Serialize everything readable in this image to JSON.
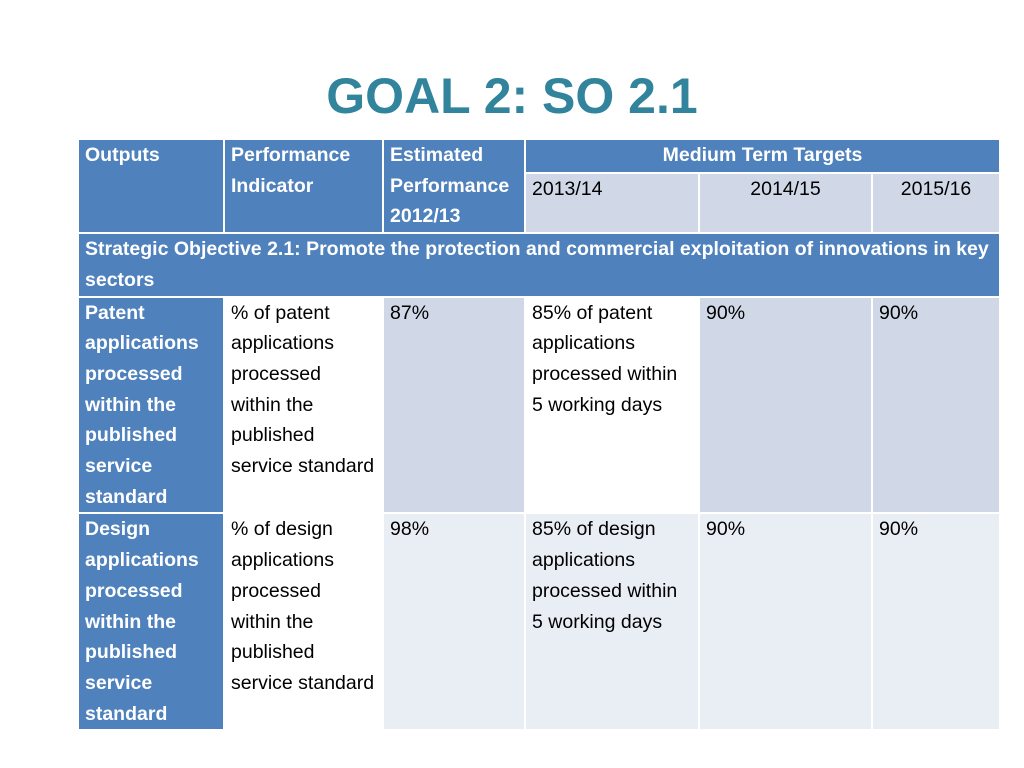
{
  "slide": {
    "title": "GOAL 2: SO 2.1"
  },
  "table": {
    "headers": {
      "outputs": "Outputs",
      "indicator": "Performance Indicator",
      "estimated": "Estimated Performance 2012/13",
      "medium_term": "Medium Term Targets",
      "years": [
        "2013/14",
        "2014/15",
        "2015/16"
      ]
    },
    "objective": "Strategic Objective 2.1: Promote the protection and commercial exploitation of innovations in key sectors",
    "rows": [
      {
        "output": "Patent applications processed within the published service standard",
        "indicator": "% of patent applications processed within the published service standard",
        "estimated": "87%",
        "target_2013_14": "85% of patent applications processed within 5 working days",
        "target_2014_15": "90%",
        "target_2015_16": "90%"
      },
      {
        "output": "Design applications processed within the published service standard",
        "indicator": "% of design applications processed within the published service standard",
        "estimated": "98%",
        "target_2013_14": "85% of design applications processed within 5 working days",
        "target_2014_15": "90%",
        "target_2015_16": "90%"
      }
    ]
  }
}
